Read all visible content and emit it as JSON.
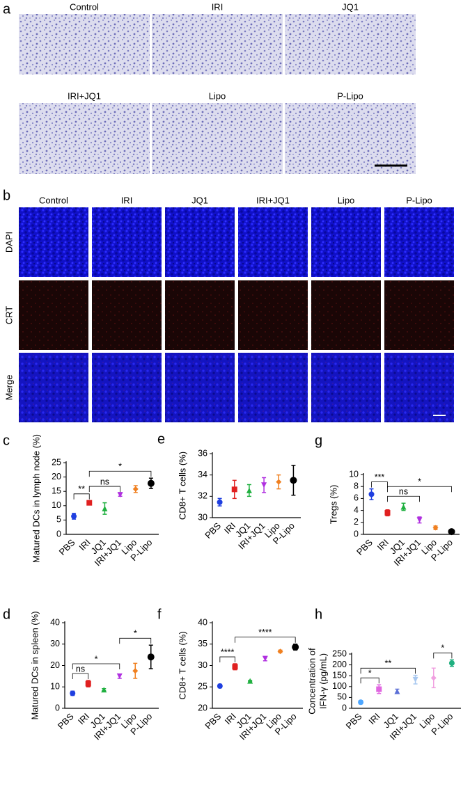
{
  "panel_a": {
    "label": "a",
    "images": [
      "Control",
      "IRI",
      "JQ1",
      "IRI+JQ1",
      "Lipo",
      "P-Lipo"
    ]
  },
  "panel_b": {
    "label": "b",
    "columns": [
      "Control",
      "IRI",
      "JQ1",
      "IRI+JQ1",
      "Lipo",
      "P-Lipo"
    ],
    "rows": [
      "DAPI",
      "CRT",
      "Merge"
    ]
  },
  "chart_data": [
    {
      "type": "dot",
      "label": "c",
      "ylabel": "Matured DCs in lymph node (%)",
      "categories": [
        "PBS",
        "IRI",
        "JQ1",
        "IRI+JQ1",
        "Lipo",
        "P-Lipo"
      ],
      "values": [
        6.3,
        11,
        9,
        13.8,
        15.8,
        17.8
      ],
      "errors": [
        1,
        0.7,
        2,
        0.5,
        1.2,
        1.8
      ],
      "colors": [
        "#1f3fe0",
        "#e02020",
        "#20b040",
        "#b030e0",
        "#f08020",
        "#000000"
      ],
      "ylim": [
        0,
        25
      ],
      "yticks": [
        0,
        5,
        10,
        15,
        20,
        25
      ],
      "annotations": [
        {
          "text": "**",
          "groups": [
            "PBS",
            "IRI"
          ]
        },
        {
          "text": "ns",
          "groups": [
            "IRI",
            "IRI+JQ1"
          ]
        },
        {
          "text": "*",
          "groups": [
            "IRI",
            "P-Lipo"
          ]
        }
      ]
    },
    {
      "type": "dot",
      "label": "e",
      "ylabel": "CD8+ T cells (%)",
      "categories": [
        "PBS",
        "IRI",
        "JQ1",
        "IRI+JQ1",
        "Lipo",
        "P-Lipo"
      ],
      "values": [
        31.45,
        32.65,
        32.55,
        33.05,
        33.35,
        33.5
      ],
      "errors": [
        0.35,
        0.85,
        0.55,
        0.7,
        0.65,
        1.4
      ],
      "colors": [
        "#1f3fe0",
        "#e02020",
        "#20b040",
        "#b030e0",
        "#f08020",
        "#000000"
      ],
      "ylim": [
        30,
        36
      ],
      "yticks": [
        30,
        32,
        34,
        36
      ],
      "annotations": []
    },
    {
      "type": "dot",
      "label": "g",
      "ylabel": "Tregs (%)",
      "categories": [
        "PBS",
        "IRI",
        "JQ1",
        "IRI+JQ1",
        "Lipo",
        "P-Lipo"
      ],
      "values": [
        6.7,
        3.6,
        4.6,
        2.4,
        1.1,
        0.45
      ],
      "errors": [
        0.9,
        0.5,
        0.6,
        0.5,
        0.3,
        0.1
      ],
      "colors": [
        "#1f3fe0",
        "#e02020",
        "#20b040",
        "#b030e0",
        "#f08020",
        "#000000"
      ],
      "ylim": [
        0,
        10
      ],
      "yticks": [
        0,
        2,
        4,
        6,
        8,
        10
      ],
      "annotations": [
        {
          "text": "***",
          "groups": [
            "PBS",
            "IRI"
          ]
        },
        {
          "text": "ns",
          "groups": [
            "IRI",
            "IRI+JQ1"
          ]
        },
        {
          "text": "*",
          "groups": [
            "IRI",
            "P-Lipo"
          ]
        }
      ]
    },
    {
      "type": "dot",
      "label": "d",
      "ylabel": "Matured DCs in spleen (%)",
      "categories": [
        "PBS",
        "IRI",
        "JQ1",
        "IRI+JQ1",
        "Lipo",
        "P-Lipo"
      ],
      "values": [
        7,
        11.5,
        8.7,
        15,
        17.5,
        24
      ],
      "errors": [
        1,
        1.5,
        0.5,
        1,
        3.5,
        5.5
      ],
      "colors": [
        "#1f3fe0",
        "#e02020",
        "#20b040",
        "#b030e0",
        "#f08020",
        "#000000"
      ],
      "ylim": [
        0,
        40
      ],
      "yticks": [
        0,
        10,
        20,
        30,
        40
      ],
      "annotations": [
        {
          "text": "ns",
          "groups": [
            "PBS",
            "IRI"
          ]
        },
        {
          "text": "*",
          "groups": [
            "PBS",
            "IRI+JQ1"
          ]
        },
        {
          "text": "*",
          "groups": [
            "IRI+JQ1",
            "P-Lipo"
          ]
        }
      ]
    },
    {
      "type": "dot",
      "label": "f",
      "ylabel": "CD8+ T cells (%)",
      "categories": [
        "PBS",
        "IRI",
        "JQ1",
        "IRI+JQ1",
        "Lipo",
        "P-Lipo"
      ],
      "values": [
        25.2,
        29.7,
        26.4,
        31.6,
        33.3,
        34.3
      ],
      "errors": [
        0.4,
        0.7,
        0.1,
        0.5,
        0.3,
        0.7
      ],
      "colors": [
        "#1f3fe0",
        "#e02020",
        "#20b040",
        "#b030e0",
        "#f08020",
        "#000000"
      ],
      "ylim": [
        20,
        40
      ],
      "yticks": [
        20,
        25,
        30,
        35,
        40
      ],
      "annotations": [
        {
          "text": "****",
          "groups": [
            "PBS",
            "IRI"
          ]
        },
        {
          "text": "****",
          "groups": [
            "IRI",
            "P-Lipo"
          ]
        }
      ]
    },
    {
      "type": "dot",
      "label": "h",
      "ylabel": [
        "Concentration of",
        "IFN-γ (pg/mL)"
      ],
      "categories": [
        "PBS",
        "IRI",
        "JQ1",
        "IRI+JQ1",
        "Lipo",
        "P-Lipo"
      ],
      "values": [
        28,
        88,
        78,
        132,
        140,
        208
      ],
      "errors": [
        8,
        20,
        10,
        20,
        45,
        15
      ],
      "colors": [
        "#4da6ff",
        "#e066e0",
        "#5b6fd6",
        "#a8c8f0",
        "#f0a0e0",
        "#20b080"
      ],
      "ylim": [
        0,
        250
      ],
      "yticks": [
        0,
        50,
        100,
        150,
        200,
        250
      ],
      "annotations": [
        {
          "text": "*",
          "groups": [
            "PBS",
            "IRI"
          ]
        },
        {
          "text": "**",
          "groups": [
            "PBS",
            "IRI+JQ1"
          ]
        },
        {
          "text": "*",
          "groups": [
            "Lipo",
            "P-Lipo"
          ]
        }
      ]
    }
  ]
}
